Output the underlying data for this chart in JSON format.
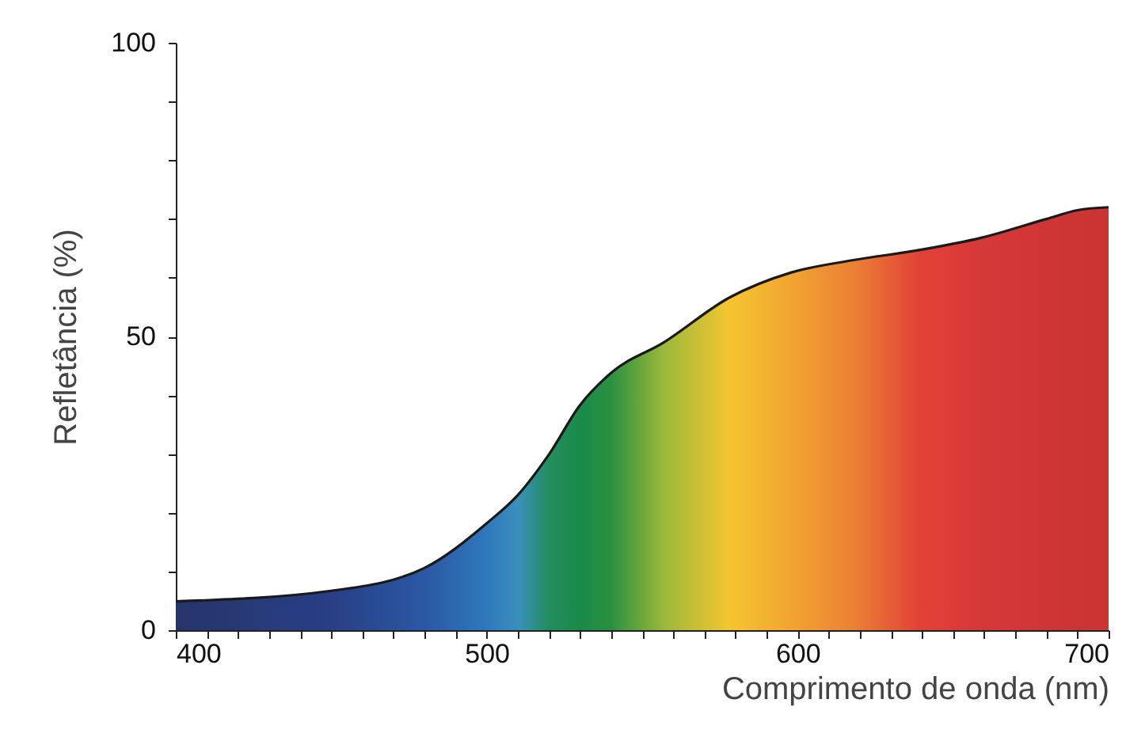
{
  "chart_data": {
    "type": "area",
    "xlabel": "Comprimento de onda (nm)",
    "ylabel": "Refletância (%)",
    "x": [
      400,
      450,
      480,
      500,
      510,
      520,
      530,
      540,
      557,
      578,
      598,
      618,
      639,
      659,
      680,
      690,
      700
    ],
    "series": [
      {
        "color": "#1a1a1a",
        "values": [
          4.9,
          6.7,
          10.6,
          18.2,
          23,
          29.9,
          38.3,
          43.8,
          49,
          56.6,
          60.9,
          63,
          64.7,
          66.8,
          70,
          71.5,
          72
        ],
        "colors": [
          "#26346a",
          "#283f86",
          "#2b58a4",
          "#2f78bb",
          "#3a90bd",
          "#248d5e",
          "#1a8a4a",
          "#2a9040",
          "#9cb83a",
          "#f5c530",
          "#f2a432",
          "#ec8035",
          "#e24236",
          "#d63838",
          "#d03535",
          "#cd3434",
          "#cc3434"
        ]
      }
    ],
    "xlim": [
      400,
      700
    ],
    "xticks": [
      400,
      {
        "value": 410,
        "label": null
      },
      {
        "value": 420,
        "label": null
      },
      {
        "value": 430,
        "label": null
      },
      {
        "value": 440,
        "label": null
      },
      {
        "value": 450,
        "label": null
      },
      {
        "value": 460,
        "label": null
      },
      {
        "value": 470,
        "label": null
      },
      {
        "value": 480,
        "label": null
      },
      {
        "value": 490,
        "label": null
      },
      500,
      {
        "value": 510,
        "label": null
      },
      {
        "value": 520,
        "label": null
      },
      {
        "value": 530,
        "label": null
      },
      {
        "value": 540,
        "label": null
      },
      {
        "value": 550,
        "label": null
      },
      {
        "value": 560,
        "label": null
      },
      {
        "value": 570,
        "label": null
      },
      {
        "value": 580,
        "label": null
      },
      {
        "value": 590,
        "label": null
      },
      600,
      {
        "value": 610,
        "label": null
      },
      {
        "value": 620,
        "label": null
      },
      {
        "value": 630,
        "label": null
      },
      {
        "value": 640,
        "label": null
      },
      {
        "value": 650,
        "label": null
      },
      {
        "value": 660,
        "label": null
      },
      {
        "value": 670,
        "label": null
      },
      {
        "value": 680,
        "label": null
      },
      {
        "value": 690,
        "label": null
      },
      700
    ],
    "ylim": [
      0,
      100
    ],
    "yticks": [
      0,
      {
        "value": 10,
        "label": null
      },
      {
        "value": 20,
        "label": null
      },
      {
        "value": 30,
        "label": null
      },
      {
        "value": 40,
        "label": null
      },
      50,
      {
        "value": 60,
        "label": null
      },
      {
        "value": 70,
        "label": null
      },
      {
        "value": 80,
        "label": null
      },
      {
        "value": 90,
        "label": null
      },
      100
    ],
    "grid": false
  }
}
